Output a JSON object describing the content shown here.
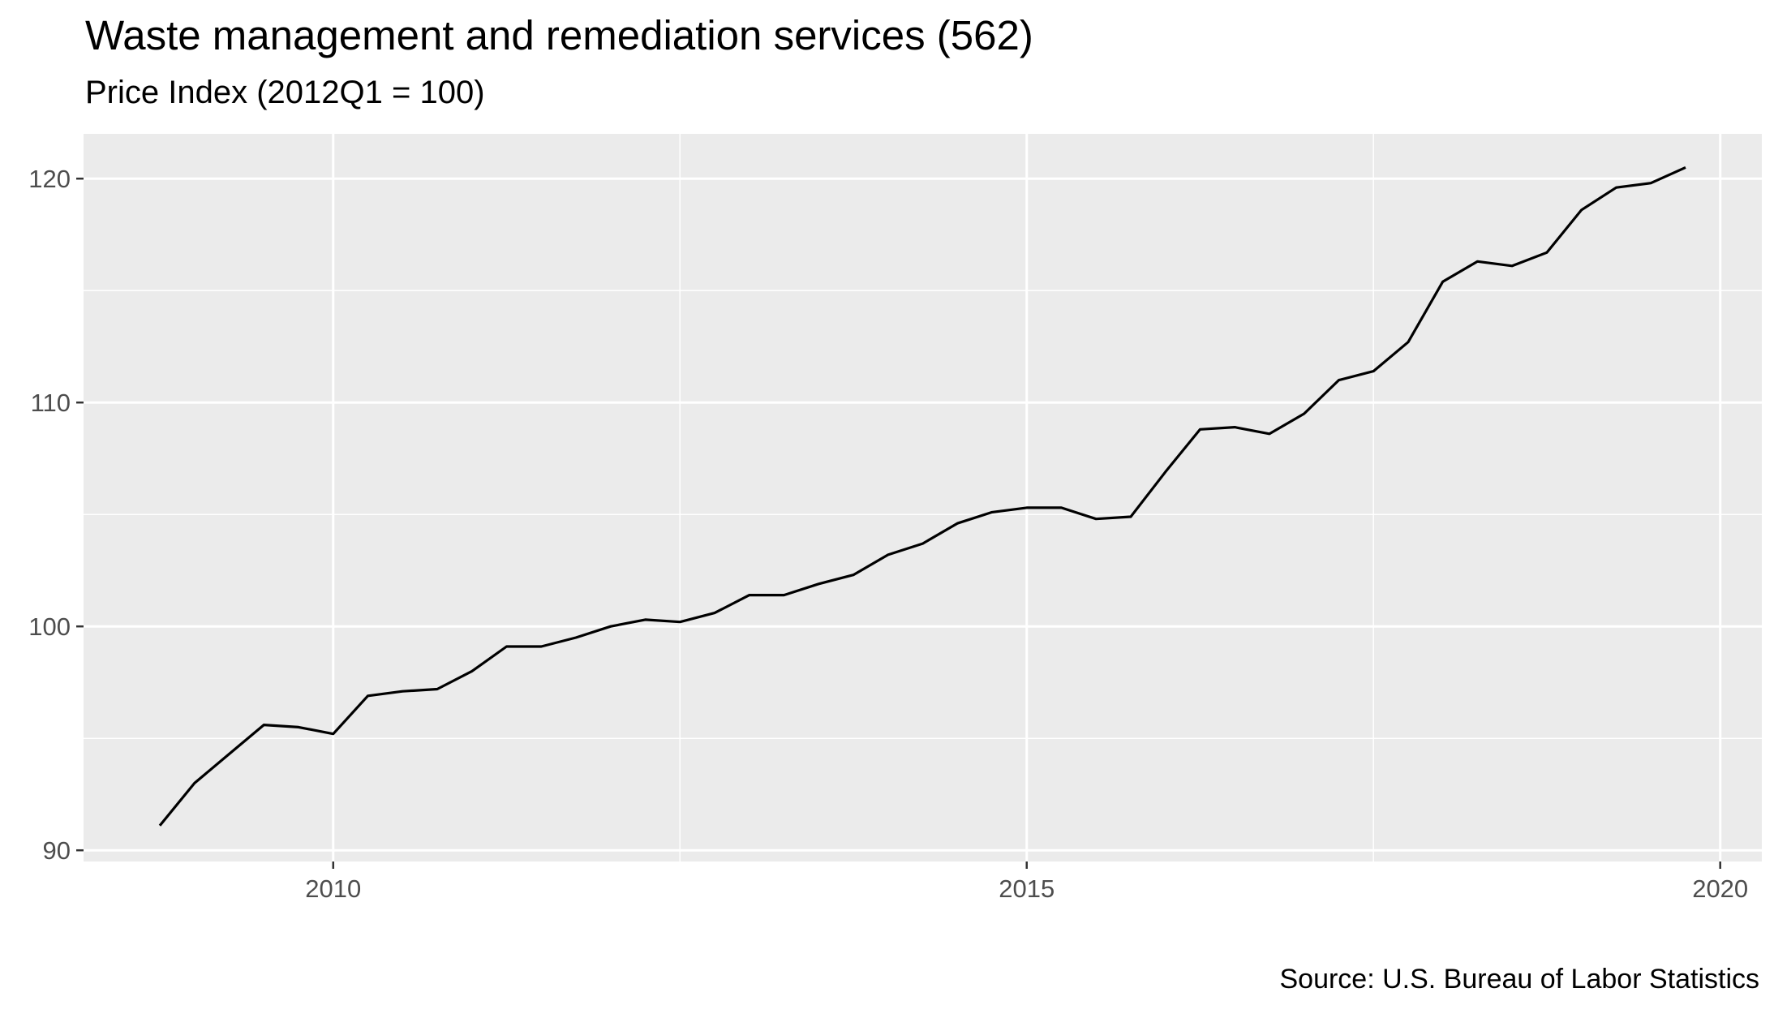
{
  "chart_data": {
    "type": "line",
    "title": "Waste management and remediation services (562)",
    "subtitle": "Price Index (2012Q1 = 100)",
    "caption": "Source: U.S. Bureau of Labor Statistics",
    "xlabel": "",
    "ylabel": "",
    "xlim": [
      2008.2,
      2020.3
    ],
    "ylim": [
      89.5,
      122.0
    ],
    "x_ticks": [
      2010,
      2015,
      2020
    ],
    "y_ticks": [
      90,
      100,
      110,
      120
    ],
    "grid": true,
    "background": "#EBEBEB",
    "line_color": "#000000",
    "series": [
      {
        "x": [
          2008.75,
          2009.0,
          2009.25,
          2009.5,
          2009.75,
          2010.0,
          2010.25,
          2010.5,
          2010.75,
          2011.0,
          2011.25,
          2011.5,
          2011.75,
          2012.0,
          2012.25,
          2012.5,
          2012.75,
          2013.0,
          2013.25,
          2013.5,
          2013.75,
          2014.0,
          2014.25,
          2014.5,
          2014.75,
          2015.0,
          2015.25,
          2015.5,
          2015.75,
          2016.0,
          2016.25,
          2016.5,
          2016.75,
          2017.0,
          2017.25,
          2017.5,
          2017.75,
          2018.0,
          2018.25,
          2018.5,
          2018.75,
          2019.0,
          2019.25,
          2019.5,
          2019.75
        ],
        "values": [
          91.1,
          93.0,
          94.3,
          95.6,
          95.5,
          95.2,
          96.9,
          97.1,
          97.2,
          98.0,
          99.1,
          99.1,
          99.5,
          100.0,
          100.3,
          100.2,
          100.6,
          101.4,
          101.4,
          101.9,
          102.3,
          103.2,
          103.7,
          104.6,
          105.1,
          105.3,
          105.3,
          104.8,
          104.9,
          106.9,
          108.8,
          108.9,
          108.6,
          109.5,
          111.0,
          111.4,
          112.7,
          115.4,
          116.3,
          116.1,
          116.7,
          118.6,
          119.6,
          119.8,
          120.5
        ]
      }
    ]
  }
}
